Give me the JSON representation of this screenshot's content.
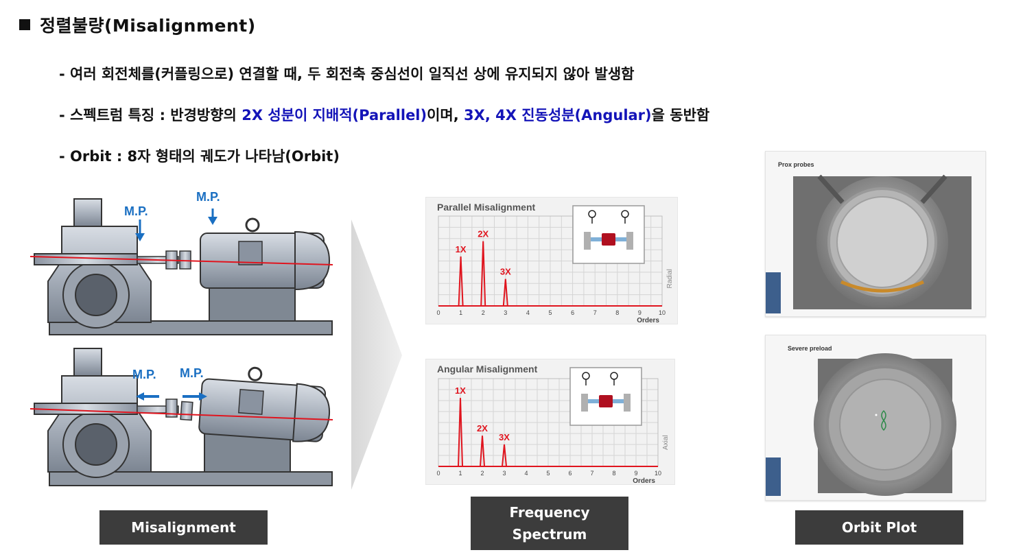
{
  "title": "정렬불량(Misalignment)",
  "bullets": [
    {
      "text": "- 여러 회전체를(커플링으로) 연결할 때, 두 회전축 중심선이 일직선 상에 유지되지 않아 발생함"
    },
    {
      "pre": "- 스펙트럼 특징 : 반경방향의 ",
      "hl1": "2X 성분이 지배적(Parallel)",
      "mid": "이며, ",
      "hl2": "3X, 4X 진동성분(Angular)",
      "post": "을 동반함"
    },
    {
      "text": "- Orbit : 8자 형태의 궤도가 나타남(Orbit)"
    }
  ],
  "mp_label": "M.P.",
  "labels": {
    "misalignment": "Misalignment",
    "frequency_line1": "Frequency",
    "frequency_line2": "Spectrum",
    "orbit": "Orbit Plot"
  },
  "orbit_panels": {
    "top_title": "Prox probes",
    "bottom_title": "Severe preload",
    "logo": "MOBIUS"
  },
  "colors": {
    "accent_blue": "#1a6fc2",
    "spectrum_red": "#e0141e",
    "highlight_text": "#1414b8",
    "label_bg": "#3c3c3c"
  },
  "chart_data": [
    {
      "type": "bar",
      "title": "Parallel Misalignment",
      "xlabel": "Orders",
      "ylabel": "Radial",
      "x_ticks": [
        0,
        1,
        2,
        3,
        4,
        5,
        6,
        7,
        8,
        9,
        10
      ],
      "xlim": [
        0,
        10
      ],
      "ylim": [
        0,
        1
      ],
      "peaks": [
        {
          "label": "1X",
          "x": 1,
          "y": 0.55
        },
        {
          "label": "2X",
          "x": 2,
          "y": 0.72
        },
        {
          "label": "3X",
          "x": 3,
          "y": 0.3
        }
      ]
    },
    {
      "type": "bar",
      "title": "Angular Misalignment",
      "xlabel": "Orders",
      "ylabel": "Axial",
      "x_ticks": [
        0,
        1,
        2,
        3,
        4,
        5,
        6,
        7,
        8,
        9,
        10
      ],
      "xlim": [
        0,
        10
      ],
      "ylim": [
        0,
        1
      ],
      "peaks": [
        {
          "label": "1X",
          "x": 1,
          "y": 0.78
        },
        {
          "label": "2X",
          "x": 2,
          "y": 0.35
        },
        {
          "label": "3X",
          "x": 3,
          "y": 0.25
        }
      ]
    }
  ]
}
